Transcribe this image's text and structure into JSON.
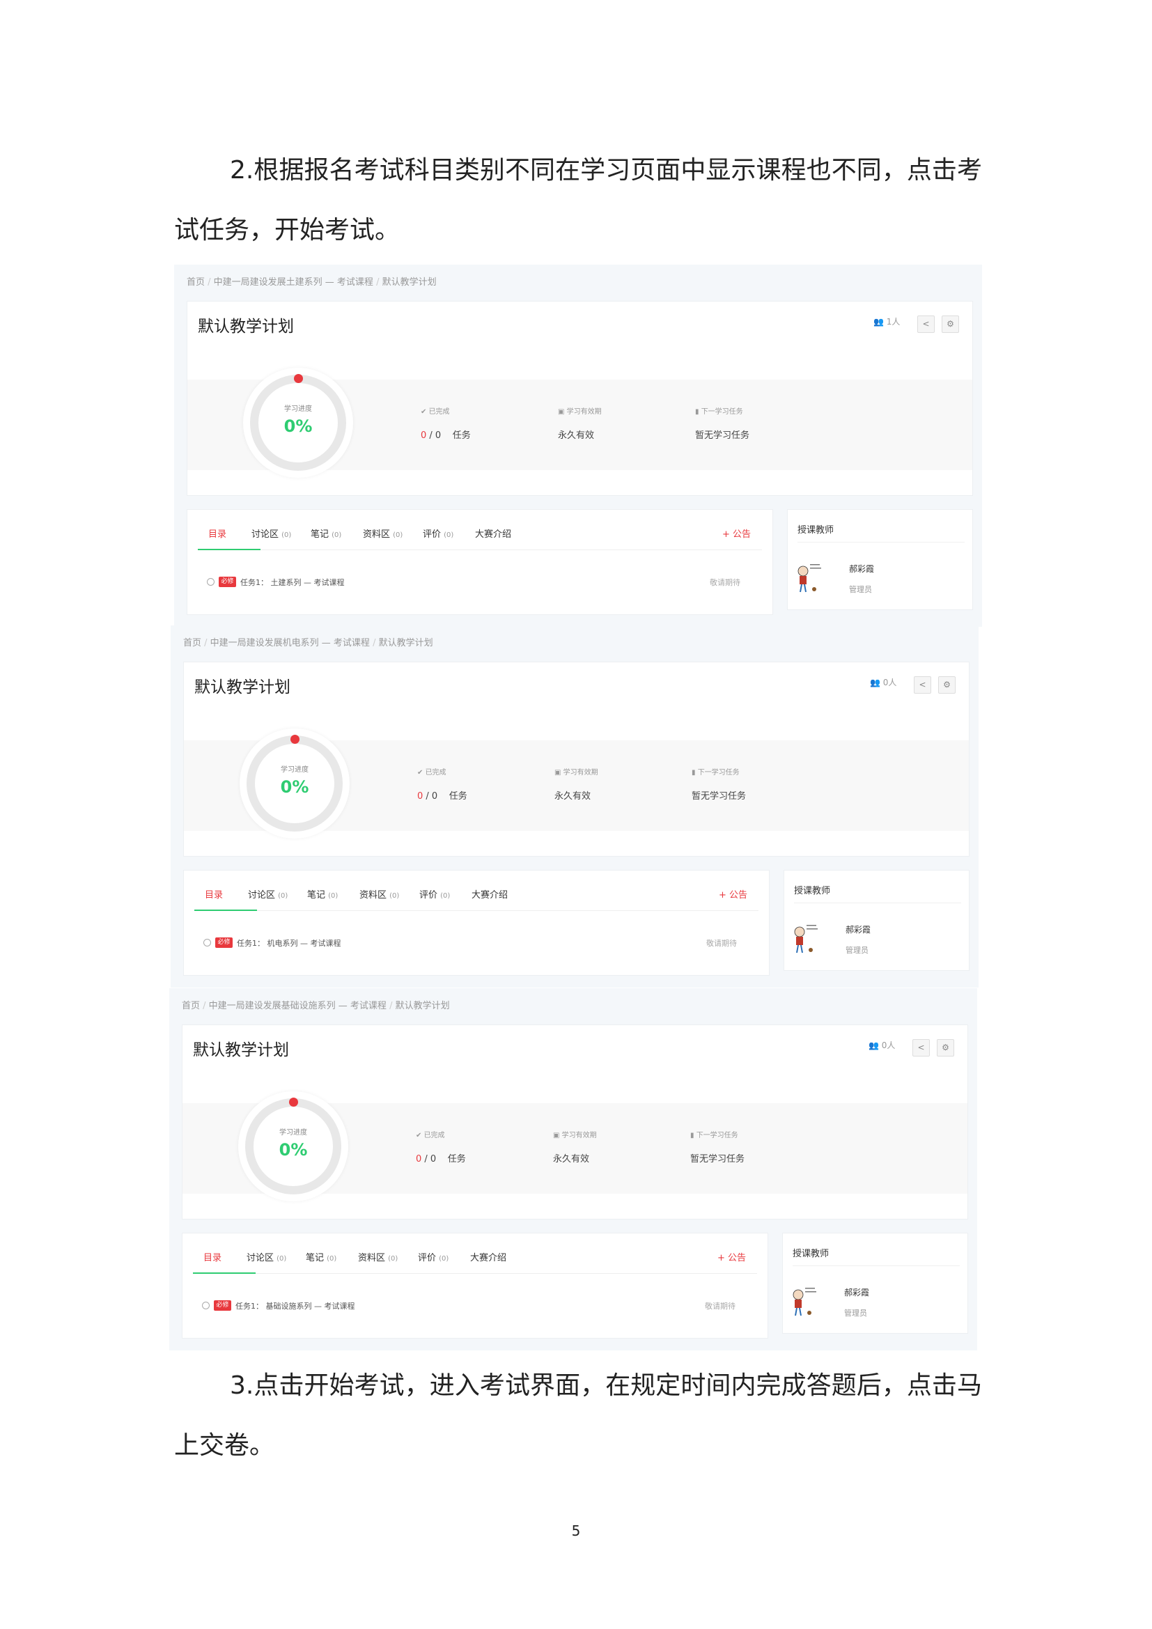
{
  "paragraph_2": "2.根据报名考试科目类别不同在学习页面中显示课程也不同，点击考试任务，开始考试。",
  "paragraph_3": "3.点击开始考试，进入考试界面，在规定时间内完成答题后，点击马上交卷。",
  "page_number": "5",
  "colors": {
    "accent_red": "#e8383d",
    "progress_green": "#2ecc71",
    "panel_bg": "#f4f7fa"
  },
  "panels": [
    {
      "breadcrumb": [
        "首页",
        "中建一局建设发展土建系列 — 考试课程",
        "默认教学计划"
      ],
      "title": "默认教学计划",
      "people": "1人",
      "progress_label": "学习进度",
      "progress": "0%",
      "stats": {
        "done_label": "已完成",
        "done": "0",
        "total": "/ 0",
        "task_unit": "任务",
        "validity_label": "学习有效期",
        "validity": "永久有效",
        "next_label": "下一学习任务",
        "next": "暂无学习任务"
      },
      "tabs": [
        {
          "label": "目录",
          "count": ""
        },
        {
          "label": "讨论区",
          "count": "(0)"
        },
        {
          "label": "笔记",
          "count": "(0)"
        },
        {
          "label": "资料区",
          "count": "(0)"
        },
        {
          "label": "评价",
          "count": "(0)"
        },
        {
          "label": "大赛介绍",
          "count": ""
        }
      ],
      "announce": "+ 公告",
      "task": {
        "badge": "必修",
        "name": "任务1： 土建系列 — 考试课程",
        "status": "敬请期待"
      },
      "teacher": {
        "heading": "授课教师",
        "name": "郝彩霞",
        "role": "管理员"
      }
    },
    {
      "breadcrumb": [
        "首页",
        "中建一局建设发展机电系列 — 考试课程",
        "默认教学计划"
      ],
      "title": "默认教学计划",
      "people": "0人",
      "progress_label": "学习进度",
      "progress": "0%",
      "stats": {
        "done_label": "已完成",
        "done": "0",
        "total": "/ 0",
        "task_unit": "任务",
        "validity_label": "学习有效期",
        "validity": "永久有效",
        "next_label": "下一学习任务",
        "next": "暂无学习任务"
      },
      "tabs": [
        {
          "label": "目录",
          "count": ""
        },
        {
          "label": "讨论区",
          "count": "(0)"
        },
        {
          "label": "笔记",
          "count": "(0)"
        },
        {
          "label": "资料区",
          "count": "(0)"
        },
        {
          "label": "评价",
          "count": "(0)"
        },
        {
          "label": "大赛介绍",
          "count": ""
        }
      ],
      "announce": "+ 公告",
      "task": {
        "badge": "必修",
        "name": "任务1： 机电系列 — 考试课程",
        "status": "敬请期待"
      },
      "teacher": {
        "heading": "授课教师",
        "name": "郝彩霞",
        "role": "管理员"
      }
    },
    {
      "breadcrumb": [
        "首页",
        "中建一局建设发展基础设施系列 — 考试课程",
        "默认教学计划"
      ],
      "title": "默认教学计划",
      "people": "0人",
      "progress_label": "学习进度",
      "progress": "0%",
      "stats": {
        "done_label": "已完成",
        "done": "0",
        "total": "/ 0",
        "task_unit": "任务",
        "validity_label": "学习有效期",
        "validity": "永久有效",
        "next_label": "下一学习任务",
        "next": "暂无学习任务"
      },
      "tabs": [
        {
          "label": "目录",
          "count": ""
        },
        {
          "label": "讨论区",
          "count": "(0)"
        },
        {
          "label": "笔记",
          "count": "(0)"
        },
        {
          "label": "资料区",
          "count": "(0)"
        },
        {
          "label": "评价",
          "count": "(0)"
        },
        {
          "label": "大赛介绍",
          "count": ""
        }
      ],
      "announce": "+ 公告",
      "task": {
        "badge": "必修",
        "name": "任务1： 基础设施系列 — 考试课程",
        "status": "敬请期待"
      },
      "teacher": {
        "heading": "授课教师",
        "name": "郝彩霞",
        "role": "管理员"
      }
    }
  ]
}
